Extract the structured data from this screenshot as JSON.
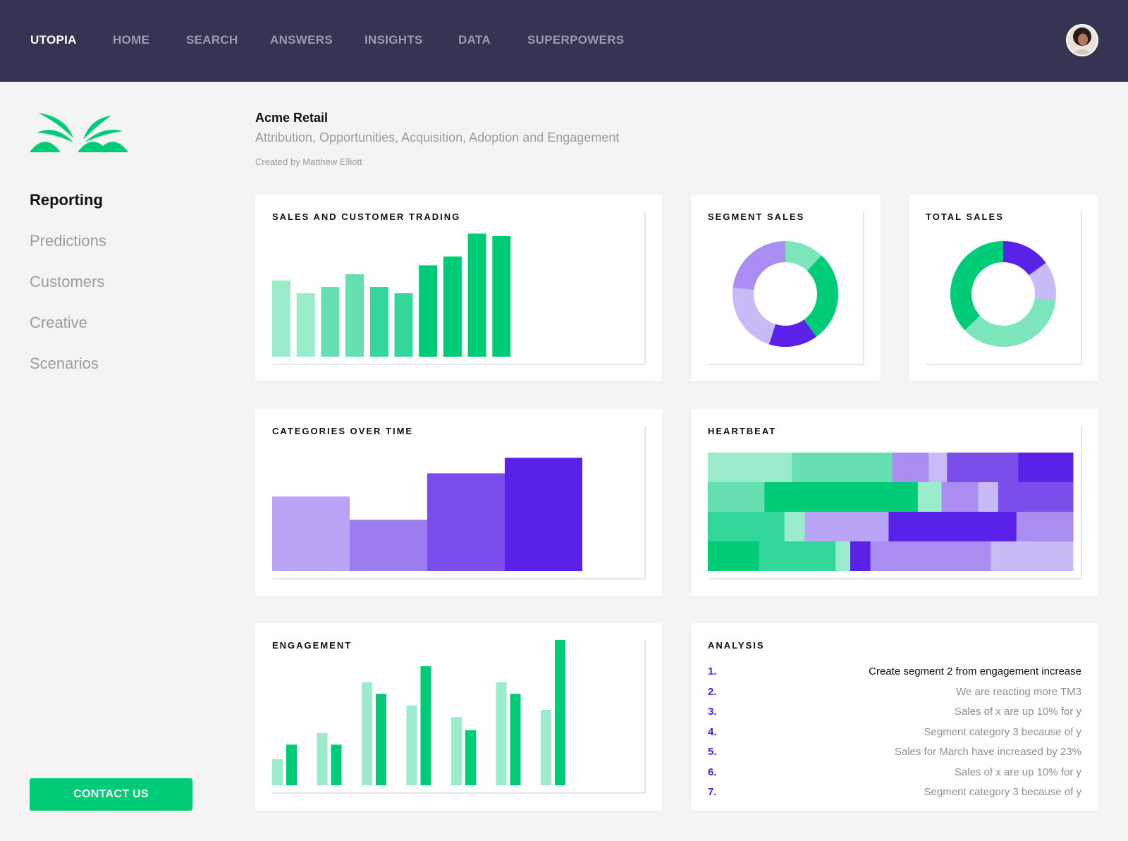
{
  "topbar": {
    "brand": "UTOPIA",
    "nav": [
      "HOME",
      "SEARCH",
      "ANSWERS",
      "INSIGHTS",
      "DATA",
      "SUPERPOWERS"
    ]
  },
  "sidebar": {
    "items": [
      "Reporting",
      "Predictions",
      "Customers",
      "Creative",
      "Scenarios"
    ],
    "active": "Reporting",
    "contact_label": "CONTACT US"
  },
  "header": {
    "title": "Acme Retail",
    "subtitle": "Attribution, Opportunities, Acquisition, Adoption and Engagement",
    "created_by": "Created by Matthew Elliott"
  },
  "colors": {
    "navy": "#353553",
    "green": "#00cc78",
    "green_light": "#9aeccb",
    "purple": "#5a21e8",
    "purple_light": "#c8b9f7"
  },
  "cards": {
    "sales_trading": {
      "title": "SALES AND CUSTOMER TRADING"
    },
    "segment_sales": {
      "title": "SEGMENT SALES"
    },
    "total_sales": {
      "title": "TOTAL SALES"
    },
    "categories_over_time": {
      "title": "CATEGORIES OVER TIME"
    },
    "heartbeat": {
      "title": "HEARTBEAT"
    },
    "engagement": {
      "title": "ENGAGEMENT"
    },
    "analysis": {
      "title": "ANALYSIS",
      "items": [
        "Create segment 2 from engagement increase",
        "We are reacting more TM3",
        "Sales of x are up 10% for y",
        "Segment category 3 because of y",
        "Sales for March have increased by 23%",
        "Sales of x are up 10% for y",
        "Segment category 3 because of y"
      ]
    }
  },
  "chart_data": [
    {
      "id": "sales_trading",
      "type": "bar",
      "values": [
        60,
        50,
        55,
        65,
        55,
        50,
        72,
        79,
        97,
        95
      ],
      "colors": [
        "#9aeccb",
        "#9aeccb",
        "#66e0b0",
        "#66e0b0",
        "#33d79a",
        "#33d79a",
        "#00cc78",
        "#00cc78",
        "#00cc78",
        "#00cc78"
      ],
      "ylim": [
        0,
        100
      ]
    },
    {
      "id": "segment_sales",
      "type": "pie",
      "slices": [
        {
          "value": 12,
          "color": "#7ce5bb"
        },
        {
          "value": 28,
          "color": "#00cc78"
        },
        {
          "value": 15,
          "color": "#5a21e8"
        },
        {
          "value": 22,
          "color": "#c8b9f7"
        },
        {
          "value": 23,
          "color": "#a98df2"
        }
      ]
    },
    {
      "id": "total_sales",
      "type": "pie",
      "slices": [
        {
          "value": 15,
          "color": "#5a21e8"
        },
        {
          "value": 12,
          "color": "#c8b9f7"
        },
        {
          "value": 36,
          "color": "#7ce5bb"
        },
        {
          "value": 37,
          "color": "#00cc78"
        }
      ]
    },
    {
      "id": "categories_over_time",
      "type": "bar",
      "values": [
        48,
        33,
        63,
        73
      ],
      "colors": [
        "#b9a4f5",
        "#9c7df0",
        "#7b4eec",
        "#5a21e8"
      ],
      "ylim": [
        0,
        100
      ]
    },
    {
      "id": "heartbeat",
      "type": "heatmap",
      "rows": [
        [
          {
            "w": 23,
            "c": "#9aeccb"
          },
          {
            "w": 27.5,
            "c": "#66e0b0"
          },
          {
            "w": 10,
            "c": "#a98df2"
          },
          {
            "w": 5,
            "c": "#c8b9f7"
          },
          {
            "w": 19.5,
            "c": "#7b4eec"
          },
          {
            "w": 15,
            "c": "#5a21e8"
          }
        ],
        [
          {
            "w": 15.5,
            "c": "#66e0b0"
          },
          {
            "w": 42,
            "c": "#00cc78"
          },
          {
            "w": 6.5,
            "c": "#9aeccb"
          },
          {
            "w": 10,
            "c": "#a98df2"
          },
          {
            "w": 5.5,
            "c": "#c8b9f7"
          },
          {
            "w": 20.5,
            "c": "#7b4eec"
          }
        ],
        [
          {
            "w": 21,
            "c": "#33d79a"
          },
          {
            "w": 5.5,
            "c": "#9aeccb"
          },
          {
            "w": 23,
            "c": "#b9a4f5"
          },
          {
            "w": 35,
            "c": "#5a21e8"
          },
          {
            "w": 15.5,
            "c": "#a98df2"
          }
        ],
        [
          {
            "w": 14,
            "c": "#00cc78"
          },
          {
            "w": 21,
            "c": "#33d79a"
          },
          {
            "w": 4,
            "c": "#9aeccb"
          },
          {
            "w": 5.5,
            "c": "#5a21e8"
          },
          {
            "w": 33,
            "c": "#a98df2"
          },
          {
            "w": 22.5,
            "c": "#c8b9f7"
          }
        ]
      ]
    },
    {
      "id": "engagement",
      "type": "bar",
      "series": [
        {
          "values": [
            18,
            36,
            71,
            55,
            47,
            71,
            52
          ],
          "color": "#9aeccb"
        },
        {
          "values": [
            28,
            28,
            63,
            82,
            38,
            63,
            100
          ],
          "color": "#00cc78"
        }
      ],
      "ylim": [
        0,
        100
      ]
    }
  ]
}
